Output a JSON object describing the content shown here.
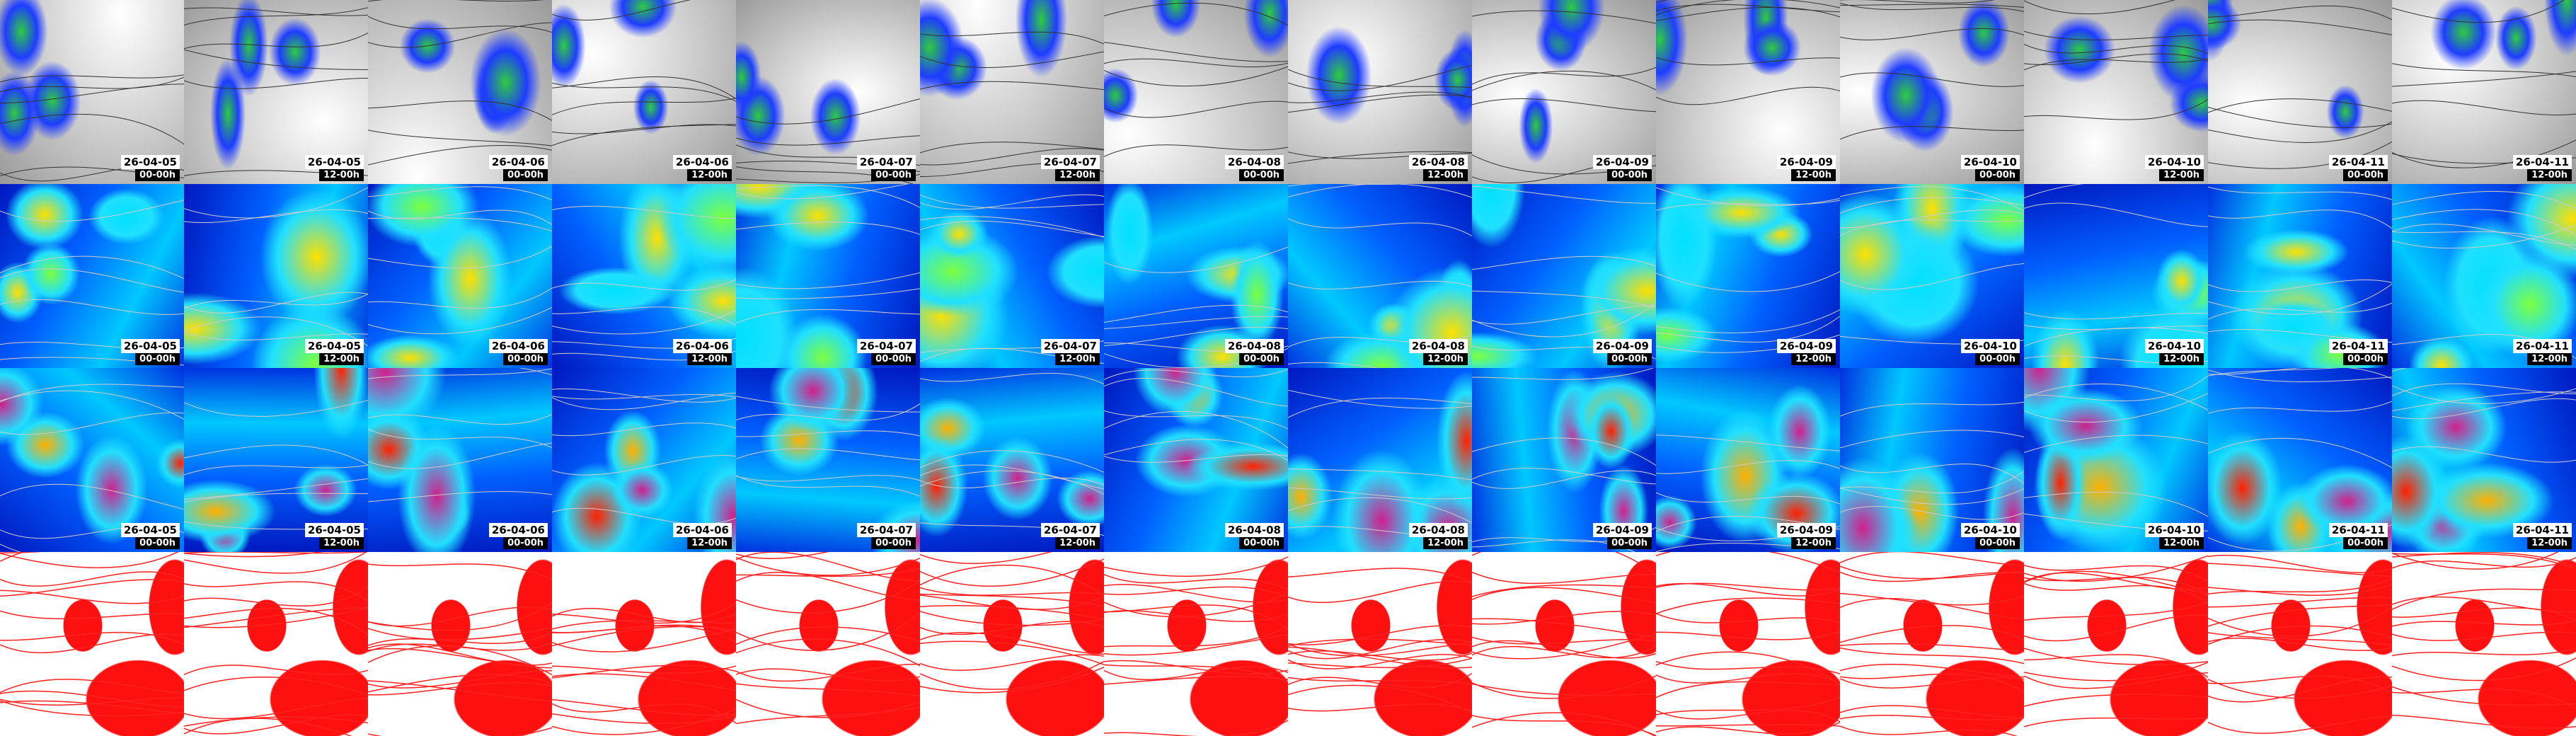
{
  "columns": [
    {
      "date": "26-04-05",
      "time": "00-00h"
    },
    {
      "date": "26-04-05",
      "time": "12-00h"
    },
    {
      "date": "26-04-06",
      "time": "00-00h"
    },
    {
      "date": "26-04-06",
      "time": "12-00h"
    },
    {
      "date": "26-04-07",
      "time": "00-00h"
    },
    {
      "date": "26-04-07",
      "time": "12-00h"
    },
    {
      "date": "26-04-08",
      "time": "00-00h"
    },
    {
      "date": "26-04-08",
      "time": "12-00h"
    },
    {
      "date": "26-04-09",
      "time": "00-00h"
    },
    {
      "date": "26-04-09",
      "time": "12-00h"
    },
    {
      "date": "26-04-10",
      "time": "00-00h"
    },
    {
      "date": "26-04-10",
      "time": "12-00h"
    },
    {
      "date": "26-04-11",
      "time": "00-00h"
    },
    {
      "date": "26-04-11",
      "time": "12-00h"
    }
  ]
}
